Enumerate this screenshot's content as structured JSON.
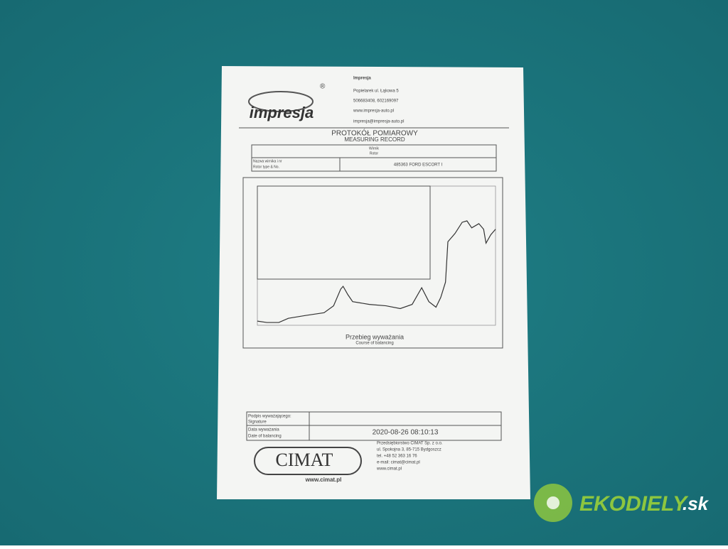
{
  "logo": {
    "name": "impresja",
    "mark": "®"
  },
  "company": {
    "name": "Impresja",
    "address": "Popielarek ul. Łąkowa 5",
    "phone": "506683408, 602169097",
    "web": "www.impresja-auto.pl",
    "email": "impresja@impresja-auto.pl"
  },
  "header": {
    "title": "PROTOKÓŁ POMIAROWY",
    "subtitle": "MEASURING RECORD"
  },
  "rotor": {
    "label": "Wirnik",
    "label_en": "Rotor",
    "type_label": "Nazwa wirnika i nr",
    "type_label_en": "Rotor type & No.",
    "type_value": "485363 FORD ESCORT I"
  },
  "graph": {
    "title": "Przebieg wyważania",
    "subtitle": "Course of balancing",
    "xlim": [
      0,
      100
    ],
    "ylim": [
      0,
      100
    ],
    "x": [
      0,
      4,
      9,
      13,
      20,
      28,
      32,
      35,
      36,
      38,
      40,
      47,
      54,
      60,
      65,
      69,
      72,
      75,
      77,
      79,
      80,
      83,
      86,
      88,
      90,
      93,
      95,
      96,
      98,
      100
    ],
    "values": [
      3,
      2,
      2,
      5,
      7,
      9,
      14,
      26,
      28,
      22,
      17,
      15,
      14,
      12,
      15,
      27,
      17,
      13,
      20,
      31,
      60,
      66,
      74,
      75,
      70,
      73,
      69,
      59,
      65,
      69
    ]
  },
  "footer": {
    "signature_label": "Podpis wyważającego:",
    "signature_label_en": "Signature",
    "date_label": "Data wyważania",
    "date_label_en": "Date of balancing",
    "date_value": "2020-08-26   08:10:13"
  },
  "cimat": {
    "logo": "CIMAT",
    "web": "www.cimat.pl",
    "lines": [
      "Przedsiębiorstwo CIMAT Sp. z o.o.",
      "ul. Spokojna 3, 85-715 Bydgoszcz",
      "tel. +48 52 363 16 76",
      "e-mail: cimat@cimat.pl",
      "www.cimat.pl"
    ]
  },
  "watermark": {
    "brand": "EKODIELY",
    "suffix": ".sk"
  }
}
